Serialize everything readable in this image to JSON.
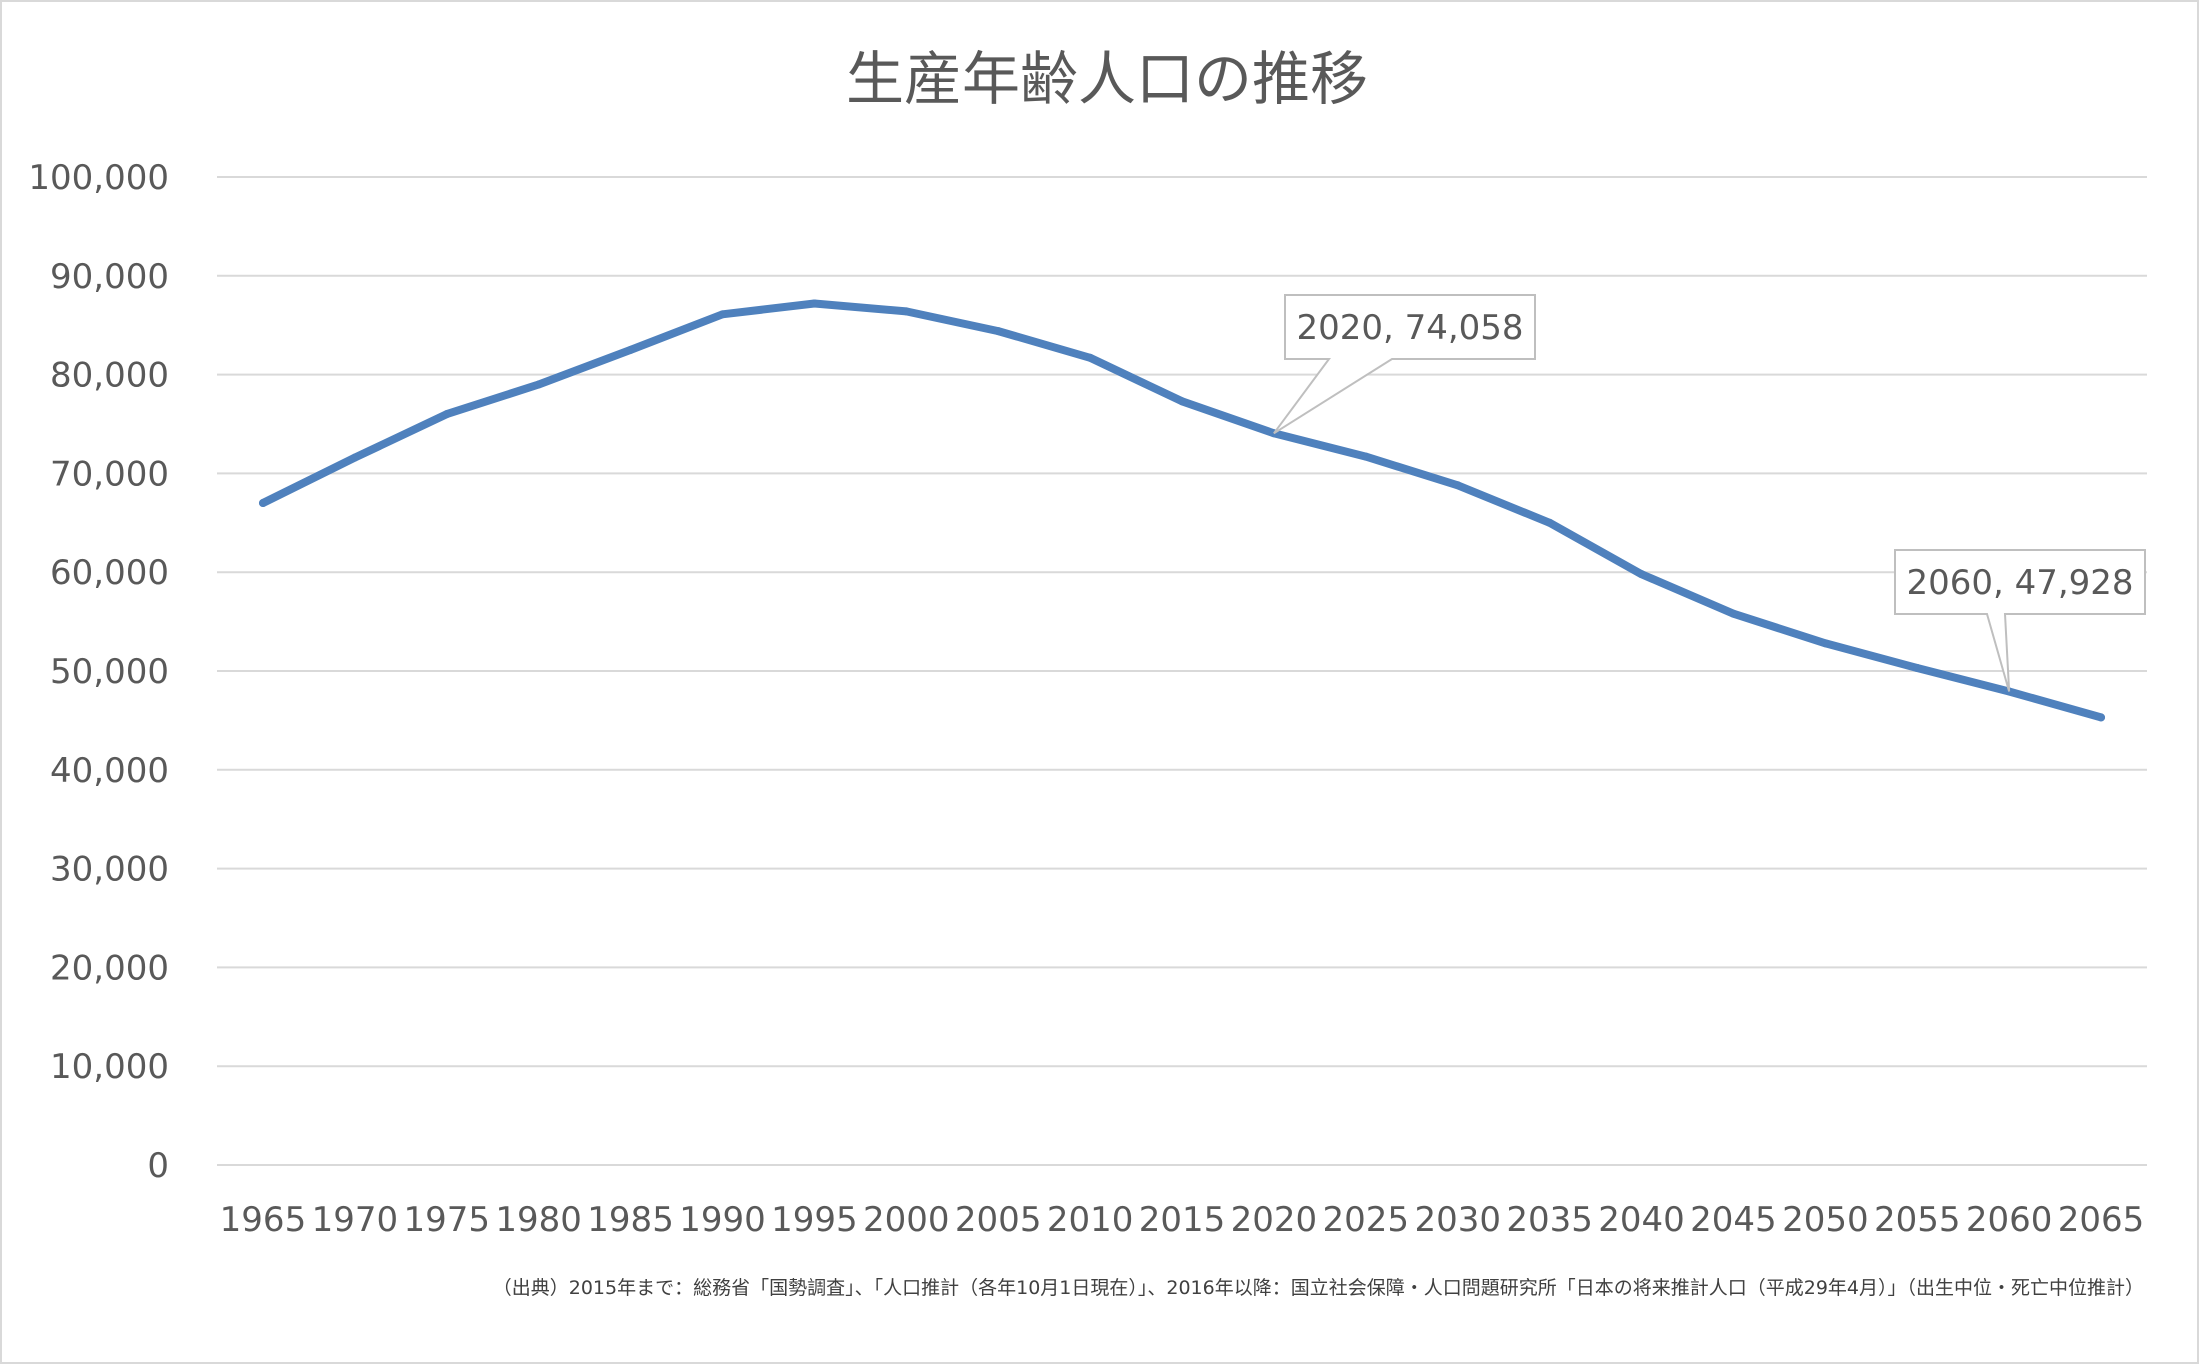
{
  "chart_data": {
    "type": "line",
    "title": "生産年齢人口の推移",
    "categories": [
      "1965",
      "1970",
      "1975",
      "1980",
      "1985",
      "1990",
      "1995",
      "2000",
      "2005",
      "2010",
      "2015",
      "2020",
      "2025",
      "2030",
      "2035",
      "2040",
      "2045",
      "2050",
      "2055",
      "2060",
      "2065"
    ],
    "series": [
      {
        "values": [
          67000,
          71600,
          76000,
          79000,
          82500,
          86100,
          87200,
          86400,
          84400,
          81700,
          77300,
          74058,
          71700,
          68800,
          65000,
          59800,
          55800,
          52800,
          50300,
          47928,
          45300
        ]
      }
    ],
    "ylim": [
      0,
      100000
    ],
    "yticks": [
      0,
      10000,
      20000,
      30000,
      40000,
      50000,
      60000,
      70000,
      80000,
      90000,
      100000
    ],
    "ytick_labels": [
      "0",
      "10,000",
      "20,000",
      "30,000",
      "40,000",
      "50,000",
      "60,000",
      "70,000",
      "80,000",
      "90,000",
      "100,000"
    ],
    "grid": true,
    "annotations": [
      {
        "category": "2020",
        "label": "2020, 74,058"
      },
      {
        "category": "2060",
        "label": "2060, 47,928"
      }
    ],
    "source_note": "（出典）2015年まで：総務省「国勢調査」、「人口推計（各年10月1日現在）」、2016年以降：国立社会保障・人口問題研究所「日本の将来推計人口（平成29年4月）」（出生中位・死亡中位推計）"
  },
  "colors": {
    "line": "#4f81bd",
    "grid": "#d9d9d9",
    "text": "#595959",
    "callout_border": "#bfbfbf"
  }
}
